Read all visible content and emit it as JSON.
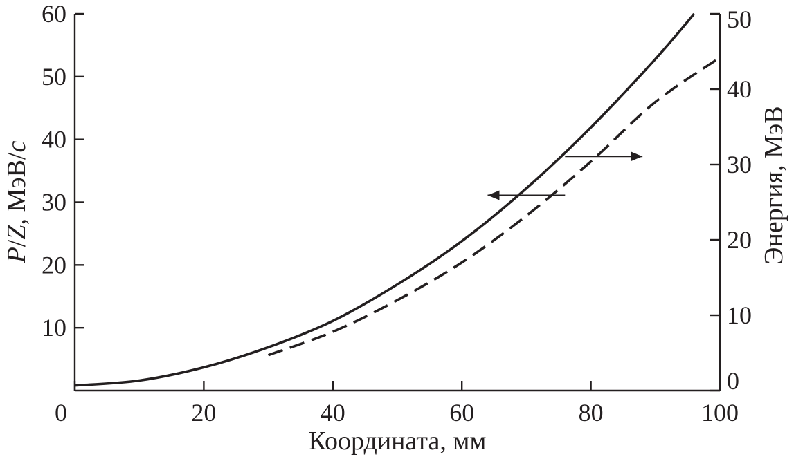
{
  "chart_data": {
    "type": "line",
    "xlabel": "Координата, мм",
    "ylabel_left": {
      "parts": [
        {
          "text": "P",
          "italic": true
        },
        {
          "text": "/",
          "italic": false
        },
        {
          "text": "Z",
          "italic": true
        },
        {
          "text": ", МэВ/",
          "italic": false
        },
        {
          "text": "c",
          "italic": true
        }
      ]
    },
    "ylabel_right": "Энергия, МэВ",
    "xlim": [
      0,
      100
    ],
    "ylim_left": [
      0,
      60
    ],
    "ylim_right": [
      0,
      50
    ],
    "x_ticks": [
      "0",
      "20",
      "40",
      "60",
      "80",
      "100"
    ],
    "y_left_ticks": [
      "10",
      "20",
      "30",
      "40",
      "50",
      "60"
    ],
    "y_right_ticks": [
      "0",
      "10",
      "20",
      "30",
      "40",
      "50"
    ],
    "grid": false,
    "legend": "none",
    "series": [
      {
        "style": "solid",
        "axis": "left",
        "x": [
          0,
          10,
          20,
          30,
          40,
          50,
          60,
          70,
          80,
          90,
          96
        ],
        "y": [
          0.8,
          1.6,
          3.7,
          6.9,
          11.1,
          16.9,
          23.8,
          32.2,
          41.9,
          52.8,
          60.0
        ]
      },
      {
        "style": "dashed",
        "axis": "right",
        "x": [
          30,
          40,
          50,
          60,
          70,
          80,
          90,
          100
        ],
        "y": [
          4.7,
          7.8,
          12.0,
          17.0,
          23.2,
          30.4,
          38.3,
          44.2
        ]
      }
    ],
    "annotations": [
      {
        "type": "arrow",
        "direction": "right",
        "refers_to_axis": "right",
        "x_start": 76,
        "x_end": 88,
        "y_left": 37.3
      },
      {
        "type": "arrow",
        "direction": "left",
        "refers_to_axis": "left",
        "x_start": 76,
        "x_end": 64,
        "y_left": 31.1
      }
    ],
    "colors": {
      "line": "#231f20",
      "background": "#ffffff"
    }
  }
}
